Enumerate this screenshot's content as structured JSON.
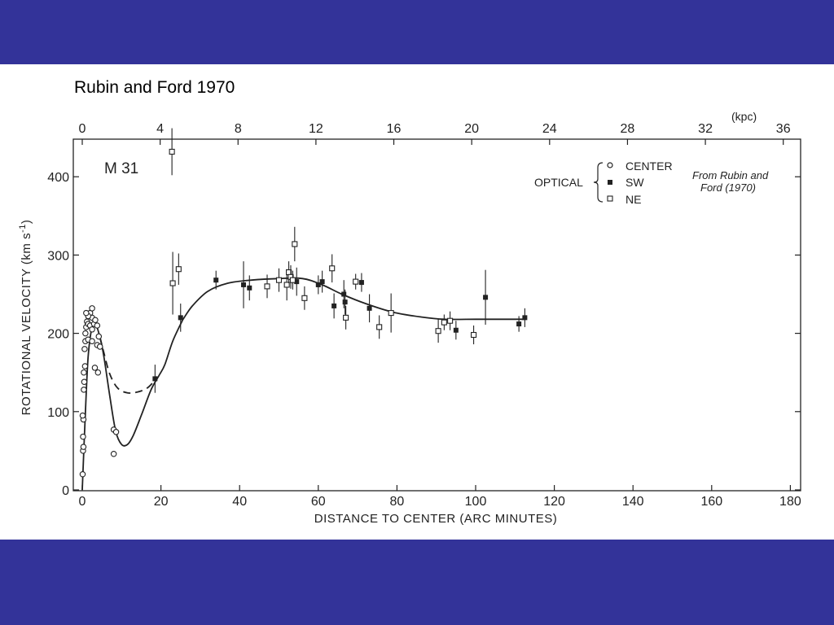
{
  "slide": {
    "title": "Rubin and Ford 1970"
  },
  "colors": {
    "band": "#333399",
    "background": "#ffffff",
    "ink": "#222222"
  },
  "chart_data": {
    "type": "scatter",
    "panel_label": "M 31",
    "xlabel": "DISTANCE TO CENTER  (ARC MINUTES)",
    "ylabel": "ROTATIONAL  VELOCITY  (km s",
    "ylabel_sup": "-1",
    "ylabel_end": ")",
    "top_axis_unit": "(kpc)",
    "xlim": [
      0,
      180
    ],
    "ylim": [
      0,
      450
    ],
    "xticks": [
      "0",
      "20",
      "40",
      "60",
      "80",
      "100",
      "120",
      "140",
      "160",
      "180"
    ],
    "xtick_values": [
      0,
      20,
      40,
      60,
      80,
      100,
      120,
      140,
      160,
      180
    ],
    "yticks": [
      "0",
      "100",
      "200",
      "300",
      "400"
    ],
    "ytick_values": [
      0,
      100,
      200,
      300,
      400
    ],
    "top_ticks": [
      "0",
      "4",
      "8",
      "12",
      "16",
      "20",
      "24",
      "28",
      "32",
      "36"
    ],
    "top_tick_values": [
      0,
      4,
      8,
      12,
      16,
      20,
      24,
      28,
      32,
      36
    ],
    "arcmin_per_kpc": 4.95,
    "legend": {
      "group_label": "OPTICAL",
      "placement": "top-right",
      "entries": [
        {
          "label": "CENTER",
          "marker": "open-circle"
        },
        {
          "label": "SW",
          "marker": "filled-square"
        },
        {
          "label": "NE",
          "marker": "open-square"
        }
      ]
    },
    "annotation": [
      "From Rubin and",
      "Ford (1970)"
    ],
    "series": [
      {
        "name": "CENTER",
        "marker": "open-circle",
        "points": [
          [
            0.1,
            20
          ],
          [
            0.2,
            50
          ],
          [
            0.3,
            55
          ],
          [
            0.2,
            68
          ],
          [
            0.3,
            90
          ],
          [
            0.1,
            95
          ],
          [
            0.4,
            128
          ],
          [
            0.5,
            138
          ],
          [
            0.4,
            150
          ],
          [
            0.7,
            158
          ],
          [
            0.6,
            180
          ],
          [
            0.8,
            190
          ],
          [
            0.8,
            200
          ],
          [
            1.0,
            208
          ],
          [
            1.2,
            215
          ],
          [
            1.5,
            212
          ],
          [
            2.0,
            210
          ],
          [
            2.5,
            205
          ],
          [
            3.0,
            212
          ],
          [
            2.5,
            220
          ],
          [
            2.0,
            226
          ],
          [
            1.5,
            222
          ],
          [
            1.0,
            226
          ],
          [
            2.5,
            232
          ],
          [
            3.3,
            217
          ],
          [
            3.8,
            210
          ],
          [
            4.2,
            196
          ],
          [
            3.8,
            185
          ],
          [
            4.5,
            183
          ],
          [
            1.5,
            192
          ],
          [
            2.5,
            190
          ],
          [
            3.2,
            156
          ],
          [
            4.0,
            150
          ],
          [
            8.0,
            77
          ],
          [
            8.6,
            74
          ],
          [
            8.0,
            46
          ]
        ]
      },
      {
        "name": "SW",
        "marker": "filled-square",
        "points": [
          [
            18.5,
            142,
            18
          ],
          [
            25.0,
            220,
            18
          ],
          [
            34.0,
            268,
            12
          ],
          [
            41.0,
            262,
            30
          ],
          [
            42.5,
            258,
            16
          ],
          [
            54.5,
            266,
            18
          ],
          [
            60.0,
            262,
            12
          ],
          [
            61.0,
            266,
            14
          ],
          [
            64.0,
            235,
            16
          ],
          [
            66.5,
            250,
            18
          ],
          [
            66.8,
            240,
            16
          ],
          [
            71.0,
            265,
            12
          ],
          [
            73.0,
            232,
            18
          ],
          [
            95.0,
            204,
            12
          ],
          [
            102.5,
            246,
            35
          ],
          [
            111.0,
            212,
            10
          ],
          [
            112.5,
            220,
            12
          ]
        ]
      },
      {
        "name": "NE",
        "marker": "open-square",
        "points": [
          [
            22.8,
            432,
            30
          ],
          [
            23.0,
            264,
            40
          ],
          [
            24.5,
            282,
            20
          ],
          [
            47.0,
            260,
            15
          ],
          [
            50.0,
            268,
            15
          ],
          [
            52.0,
            262,
            20
          ],
          [
            52.5,
            278,
            14
          ],
          [
            53.0,
            272,
            15
          ],
          [
            53.5,
            268,
            12
          ],
          [
            54.0,
            314,
            22
          ],
          [
            56.5,
            245,
            15
          ],
          [
            63.5,
            283,
            18
          ],
          [
            67.0,
            220,
            15
          ],
          [
            69.5,
            266,
            10
          ],
          [
            75.5,
            208,
            15
          ],
          [
            78.5,
            226,
            25
          ],
          [
            90.5,
            203,
            15
          ],
          [
            92.0,
            214,
            10
          ],
          [
            93.5,
            216,
            12
          ],
          [
            99.5,
            198,
            12
          ]
        ]
      }
    ],
    "curves": [
      {
        "style": "solid",
        "points": [
          [
            0,
            0
          ],
          [
            0.8,
            100
          ],
          [
            1.5,
            170
          ],
          [
            2.5,
            208
          ],
          [
            3.5,
            210
          ],
          [
            4.5,
            195
          ],
          [
            5.5,
            170
          ],
          [
            7.0,
            120
          ],
          [
            8.5,
            75
          ],
          [
            10.0,
            58
          ],
          [
            11.5,
            58
          ],
          [
            13.0,
            70
          ],
          [
            15.0,
            95
          ],
          [
            17.5,
            128
          ],
          [
            19.5,
            146
          ],
          [
            21.0,
            160
          ],
          [
            23.0,
            190
          ],
          [
            25.5,
            217
          ]
        ]
      },
      {
        "style": "dashed",
        "points": [
          [
            4.5,
            195
          ],
          [
            5.5,
            175
          ],
          [
            7.0,
            148
          ],
          [
            9.0,
            130
          ],
          [
            11.5,
            124
          ],
          [
            14.0,
            125
          ],
          [
            16.5,
            130
          ],
          [
            18.5,
            140
          ]
        ]
      },
      {
        "style": "solid",
        "points": [
          [
            25.5,
            217
          ],
          [
            28.0,
            235
          ],
          [
            32.0,
            254
          ],
          [
            37.0,
            264
          ],
          [
            43.0,
            268
          ],
          [
            50.0,
            270
          ],
          [
            56.0,
            270
          ],
          [
            61.0,
            262
          ],
          [
            66.0,
            250
          ],
          [
            72.0,
            238
          ],
          [
            79.0,
            227
          ],
          [
            86.0,
            221
          ],
          [
            92.0,
            218
          ],
          [
            100.0,
            218
          ],
          [
            106.0,
            218
          ],
          [
            112.0,
            218
          ]
        ]
      }
    ]
  }
}
